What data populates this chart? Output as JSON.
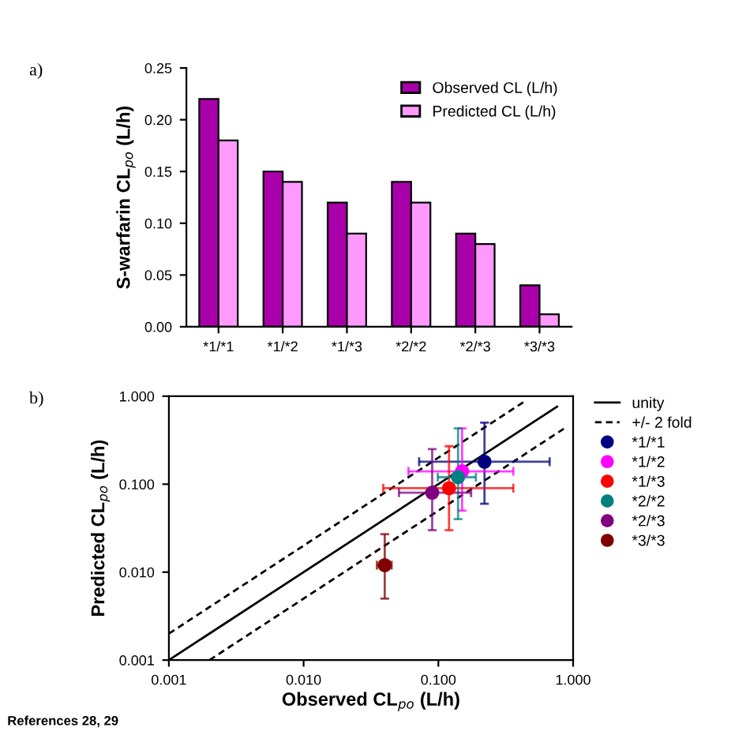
{
  "chart_data": [
    {
      "type": "bar",
      "ylabel": "S-warfarin CL$_{po}$ (L/h)",
      "annotations": [
        "a)"
      ],
      "categories": [
        "*1/*1",
        "*1/*2",
        "*1/*3",
        "*2/*2",
        "*2/*3",
        "*3/*3"
      ],
      "series": [
        {
          "name": "Observed CL (L/h)",
          "color": "#aa00aa",
          "values": [
            0.22,
            0.15,
            0.12,
            0.14,
            0.09,
            0.04
          ]
        },
        {
          "name": "Predicted CL (L/h)",
          "color": "#ff99ff",
          "values": [
            0.18,
            0.14,
            0.09,
            0.12,
            0.08,
            0.012
          ]
        }
      ],
      "ylim": [
        0,
        0.25
      ],
      "yticks": [
        {
          "value": 0,
          "label": "0.00"
        },
        {
          "value": 0.05,
          "label": "0.05"
        },
        {
          "value": 0.1,
          "label": "0.10"
        },
        {
          "value": 0.15,
          "label": "0.15"
        },
        {
          "value": 0.2,
          "label": "0.20"
        },
        {
          "value": 0.25,
          "label": "0.25"
        }
      ],
      "legend": "top right"
    },
    {
      "type": "scatter",
      "xlabel": "Observed CL$_{po}$ (L/h)",
      "ylabel": "Predicted CL$_{po}$ (L/h)",
      "annotations": [
        "b)",
        "References 28, 29"
      ],
      "log": "xy",
      "legend": "right",
      "xlim": [
        0.001,
        1
      ],
      "ylim": [
        0.001,
        1
      ],
      "xticks": [
        {
          "value": 0.001,
          "label": "0.001"
        },
        {
          "value": 0.01,
          "label": "0.010"
        },
        {
          "value": 0.1,
          "label": "0.100"
        },
        {
          "value": 1,
          "label": "1.000"
        }
      ],
      "yticks": [
        {
          "value": 0.001,
          "label": "0.001"
        },
        {
          "value": 0.01,
          "label": "0.010"
        },
        {
          "value": 0.1,
          "label": "0.100"
        },
        {
          "value": 1,
          "label": "1.000"
        }
      ],
      "series": [
        {
          "name": "unity",
          "type": "line",
          "line_style": "solid",
          "color": "#000000",
          "x": [
            0.001,
            0.76
          ],
          "values": [
            0.001,
            0.76
          ]
        },
        {
          "name": "+/- 2 fold",
          "type": "line",
          "line_style": "dashed",
          "color": "#000000",
          "x": [
            0.001,
            0.44
          ],
          "values": [
            0.002,
            0.88
          ]
        },
        {
          "type": "line",
          "line_style": "dashed",
          "color": "#000000",
          "x": [
            0.002,
            0.88
          ],
          "values": [
            0.001,
            0.44
          ]
        },
        {
          "name": "*1/*1",
          "marker": "circle",
          "color": "#000080",
          "x": [
            0.22
          ],
          "values": [
            0.18
          ],
          "errors": [
            [
              0.06,
              0.5
            ]
          ],
          "xerrors": [
            [
              0.072,
              0.67
            ]
          ]
        },
        {
          "name": "*1/*2",
          "marker": "circle",
          "color": "#ff00ff",
          "x": [
            0.15
          ],
          "values": [
            0.14
          ],
          "errors": [
            [
              0.05,
              0.43
            ]
          ],
          "xerrors": [
            [
              0.06,
              0.36
            ]
          ]
        },
        {
          "name": "*1/*3",
          "marker": "circle",
          "color": "#ff0000",
          "x": [
            0.12
          ],
          "values": [
            0.09
          ],
          "errors": [
            [
              0.03,
              0.27
            ]
          ],
          "xerrors": [
            [
              0.039,
              0.36
            ]
          ]
        },
        {
          "name": "*2/*2",
          "marker": "circle",
          "color": "#008080",
          "x": [
            0.14
          ],
          "values": [
            0.12
          ],
          "errors": [
            [
              0.04,
              0.43
            ]
          ],
          "xerrors": [
            [
              0.099,
              0.19
            ]
          ]
        },
        {
          "name": "*2/*3",
          "marker": "circle",
          "color": "#800080",
          "x": [
            0.09
          ],
          "values": [
            0.08
          ],
          "errors": [
            [
              0.03,
              0.25
            ]
          ],
          "xerrors": [
            [
              0.051,
              0.175
            ]
          ]
        },
        {
          "name": "*3/*3",
          "marker": "circle",
          "color": "#800000",
          "x": [
            0.04
          ],
          "values": [
            0.012
          ],
          "errors": [
            [
              0.005,
              0.027
            ]
          ],
          "xerrors": [
            [
              0.035,
              0.045
            ]
          ]
        }
      ]
    }
  ]
}
